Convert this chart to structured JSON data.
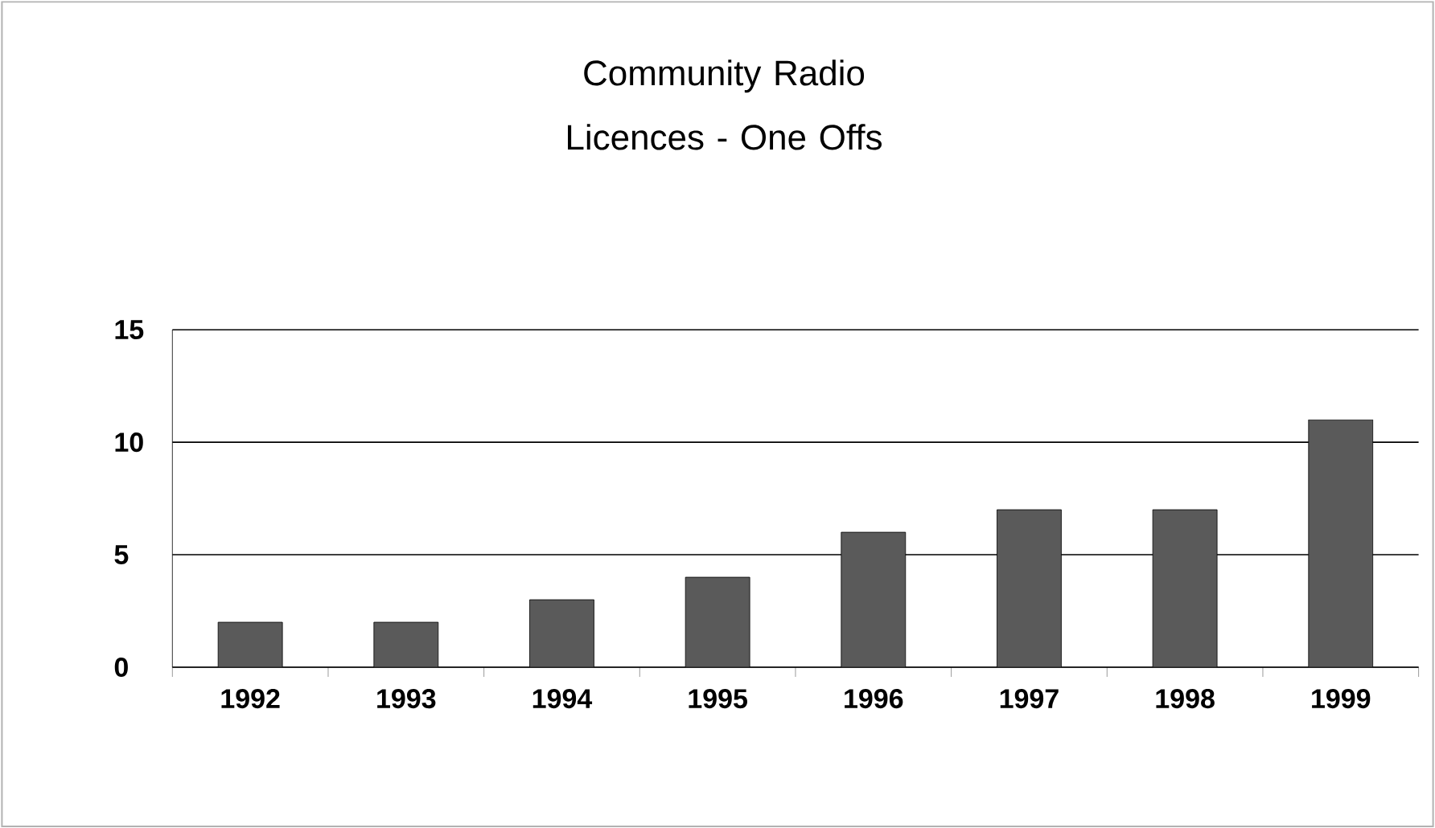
{
  "chart_data": {
    "type": "bar",
    "title": "Community Radio Licences - One Offs",
    "categories": [
      "1992",
      "1993",
      "1994",
      "1995",
      "1996",
      "1997",
      "1998",
      "1999"
    ],
    "values": [
      2,
      2,
      3,
      4,
      6,
      7,
      7,
      11
    ],
    "color": "#5a5a5a",
    "ylim": [
      0,
      15
    ],
    "yticks": [
      0,
      5,
      10,
      15
    ],
    "grid": "y"
  }
}
